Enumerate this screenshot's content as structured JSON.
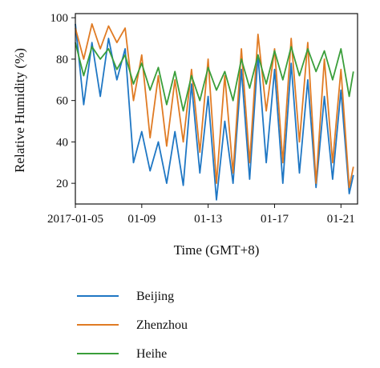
{
  "chart_data": {
    "type": "line",
    "xlabel": "Time (GMT+8)",
    "ylabel": "Relative Humidity (%)",
    "x_tick_labels": [
      "2017-01-05",
      "01-09",
      "01-13",
      "01-17",
      "01-21"
    ],
    "x_tick_dates": [
      "2017-01-05",
      "2017-01-09",
      "2017-01-13",
      "2017-01-17",
      "2017-01-21"
    ],
    "xlim": [
      "2017-01-05",
      "2017-01-22"
    ],
    "y_ticks": [
      20,
      40,
      60,
      80,
      100
    ],
    "ylim": [
      10,
      102
    ],
    "grid": false,
    "legend_position": "below",
    "x": [
      "2017-01-05 00:00",
      "2017-01-05 12:00",
      "2017-01-06 00:00",
      "2017-01-06 12:00",
      "2017-01-07 00:00",
      "2017-01-07 12:00",
      "2017-01-08 00:00",
      "2017-01-08 12:00",
      "2017-01-09 00:00",
      "2017-01-09 12:00",
      "2017-01-10 00:00",
      "2017-01-10 12:00",
      "2017-01-11 00:00",
      "2017-01-11 12:00",
      "2017-01-12 00:00",
      "2017-01-12 12:00",
      "2017-01-13 00:00",
      "2017-01-13 12:00",
      "2017-01-14 00:00",
      "2017-01-14 12:00",
      "2017-01-15 00:00",
      "2017-01-15 12:00",
      "2017-01-16 00:00",
      "2017-01-16 12:00",
      "2017-01-17 00:00",
      "2017-01-17 12:00",
      "2017-01-18 00:00",
      "2017-01-18 12:00",
      "2017-01-19 00:00",
      "2017-01-19 12:00",
      "2017-01-20 00:00",
      "2017-01-20 12:00",
      "2017-01-21 00:00",
      "2017-01-21 12:00",
      "2017-01-21 18:00"
    ],
    "series": [
      {
        "name": "Beijing",
        "color": "#1f77c4",
        "values": [
          97,
          58,
          88,
          62,
          90,
          70,
          85,
          30,
          45,
          26,
          40,
          20,
          45,
          19,
          68,
          25,
          62,
          12,
          50,
          20,
          75,
          22,
          82,
          30,
          75,
          20,
          78,
          25,
          70,
          18,
          62,
          22,
          65,
          15,
          24
        ]
      },
      {
        "name": "Zhenzhou",
        "color": "#e07b24",
        "values": [
          95,
          80,
          97,
          85,
          96,
          88,
          95,
          60,
          82,
          42,
          72,
          38,
          70,
          40,
          75,
          35,
          80,
          20,
          72,
          25,
          85,
          30,
          92,
          55,
          85,
          30,
          90,
          40,
          88,
          20,
          80,
          30,
          75,
          18,
          28
        ]
      },
      {
        "name": "Heihe",
        "color": "#3a9e3a",
        "values": [
          88,
          72,
          86,
          80,
          85,
          75,
          82,
          68,
          78,
          65,
          76,
          58,
          74,
          55,
          72,
          60,
          76,
          65,
          74,
          60,
          80,
          66,
          82,
          68,
          84,
          70,
          86,
          72,
          85,
          74,
          84,
          70,
          85,
          62,
          74
        ]
      }
    ]
  }
}
